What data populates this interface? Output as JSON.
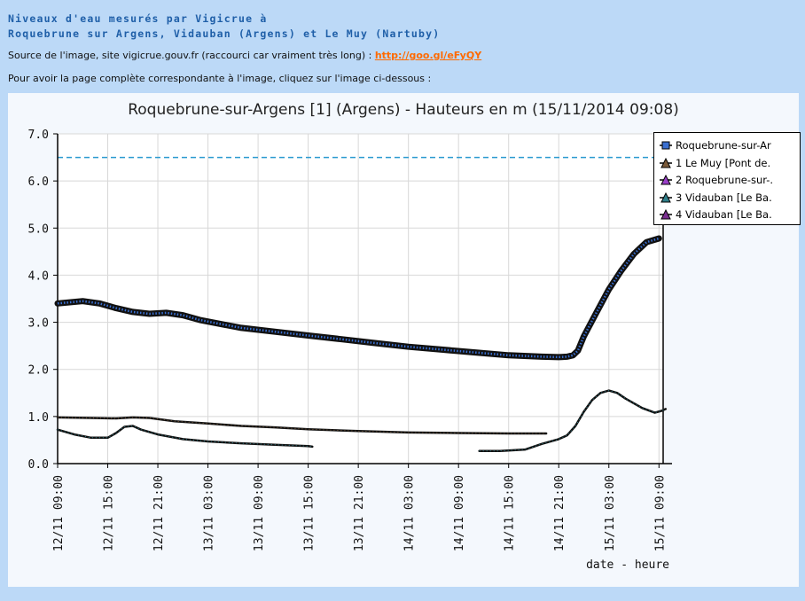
{
  "header": {
    "title_line1": "Niveaux d'eau mesurés par Vigicrue à",
    "title_line2": "Roquebrune sur Argens, Vidauban (Argens) et Le Muy (Nartuby)"
  },
  "source": {
    "text": "Source de l'image, site vigicrue.gouv.fr (raccourci car vraiment très long) : ",
    "link_text": "http://goo.gl/eFyQY"
  },
  "instruction": "Pour avoir la page complète correspondante à l'image, cliquez sur l'image ci-dessous :",
  "colors": {
    "page_bg": "#bcd9f7",
    "heading": "#1f5fa8",
    "link": "#ff6a00",
    "threshold": "#2a9ad0",
    "series_main": "#3a6fd0",
    "series_line": "#000000"
  },
  "chart_data": {
    "type": "line",
    "title": "Roquebrune-sur-Argens [1] (Argens) - Hauteurs en m (15/11/2014 09:08)",
    "xlabel": "date - heure",
    "ylabel": "",
    "ylim": [
      0,
      7
    ],
    "yticks": [
      "0.0",
      "1.0",
      "2.0",
      "3.0",
      "4.0",
      "5.0",
      "6.0",
      "7.0"
    ],
    "xlim_hours": [
      0,
      72.5
    ],
    "x_tick_labels": [
      "12/11 09:00",
      "12/11 15:00",
      "12/11 21:00",
      "13/11 03:00",
      "13/11 09:00",
      "13/11 15:00",
      "13/11 21:00",
      "14/11 03:00",
      "14/11 09:00",
      "14/11 15:00",
      "14/11 21:00",
      "15/11 03:00",
      "15/11 09:00"
    ],
    "grid": true,
    "legend_position": "right",
    "threshold": 6.5,
    "series": [
      {
        "name": "Roquebrune-sur-Ar",
        "marker_color": "#3a6fd0",
        "legend_marker": "square",
        "segments": [
          [
            [
              0,
              3.4
            ],
            [
              3,
              3.45
            ],
            [
              5,
              3.4
            ],
            [
              7,
              3.3
            ],
            [
              9,
              3.22
            ],
            [
              11,
              3.18
            ],
            [
              13,
              3.2
            ],
            [
              15,
              3.15
            ],
            [
              17,
              3.05
            ],
            [
              19,
              2.98
            ],
            [
              22,
              2.88
            ],
            [
              26,
              2.8
            ],
            [
              30,
              2.72
            ],
            [
              34,
              2.64
            ],
            [
              38,
              2.56
            ],
            [
              42,
              2.48
            ],
            [
              46,
              2.42
            ],
            [
              50,
              2.36
            ],
            [
              54,
              2.3
            ],
            [
              58,
              2.27
            ],
            [
              60,
              2.26
            ],
            [
              61,
              2.27
            ],
            [
              61.7,
              2.3
            ],
            [
              62.3,
              2.4
            ],
            [
              63,
              2.7
            ],
            [
              64.5,
              3.2
            ],
            [
              66,
              3.7
            ],
            [
              67.5,
              4.1
            ],
            [
              69,
              4.45
            ],
            [
              70.5,
              4.7
            ],
            [
              72,
              4.78
            ]
          ]
        ]
      },
      {
        "name": "1 Le Muy [Pont de.",
        "marker_color": "#7a5a3a",
        "legend_marker": "triangle",
        "segments": [
          [
            [
              0,
              0.98
            ],
            [
              4,
              0.97
            ],
            [
              7,
              0.96
            ],
            [
              9,
              0.98
            ],
            [
              11,
              0.97
            ],
            [
              14,
              0.9
            ],
            [
              18,
              0.85
            ],
            [
              22,
              0.8
            ],
            [
              26,
              0.77
            ],
            [
              30,
              0.73
            ],
            [
              36,
              0.69
            ],
            [
              42,
              0.66
            ],
            [
              48,
              0.65
            ],
            [
              54,
              0.64
            ],
            [
              58.5,
              0.64
            ]
          ]
        ]
      },
      {
        "name": "2 Roquebrune-sur-.",
        "marker_color": "#9a3fc8",
        "legend_marker": "triangle",
        "segments": []
      },
      {
        "name": "3 Vidauban [Le Ba.",
        "marker_color": "#2f7f8a",
        "legend_marker": "triangle",
        "segments": [
          [
            [
              0,
              0.72
            ],
            [
              2,
              0.62
            ],
            [
              4,
              0.55
            ],
            [
              6,
              0.55
            ],
            [
              7,
              0.65
            ],
            [
              8,
              0.78
            ],
            [
              9,
              0.8
            ],
            [
              10,
              0.72
            ],
            [
              12,
              0.62
            ],
            [
              15,
              0.52
            ],
            [
              18,
              0.47
            ],
            [
              22,
              0.43
            ],
            [
              26,
              0.4
            ],
            [
              30,
              0.37
            ],
            [
              30.5,
              0.36
            ]
          ],
          [
            [
              50.5,
              0.27
            ],
            [
              53,
              0.27
            ],
            [
              56,
              0.3
            ],
            [
              58,
              0.42
            ],
            [
              60,
              0.52
            ],
            [
              61,
              0.6
            ],
            [
              62,
              0.8
            ],
            [
              63,
              1.1
            ],
            [
              64,
              1.35
            ],
            [
              65,
              1.5
            ],
            [
              66,
              1.55
            ],
            [
              67,
              1.5
            ],
            [
              68,
              1.38
            ],
            [
              70,
              1.18
            ],
            [
              71.5,
              1.08
            ],
            [
              72.3,
              1.12
            ],
            [
              72.8,
              1.16
            ]
          ]
        ]
      },
      {
        "name": "4 Vidauban [Le Ba.",
        "marker_color": "#7a2f8f",
        "legend_marker": "triangle",
        "segments": []
      }
    ]
  }
}
